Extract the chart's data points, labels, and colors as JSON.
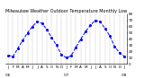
{
  "title": "Milwaukee Weather Outdoor Temperature Monthly Low",
  "months": [
    "Jan",
    "Feb",
    "Mar",
    "Apr",
    "May",
    "Jun",
    "Jul",
    "Aug",
    "Sep",
    "Oct",
    "Nov",
    "Dec",
    "Jan",
    "Feb",
    "Mar",
    "Apr",
    "May",
    "Jun",
    "Jul",
    "Aug",
    "Sep",
    "Oct",
    "Nov",
    "Dec",
    "Jan"
  ],
  "years": [
    "06",
    "06",
    "06",
    "06",
    "06",
    "06",
    "06",
    "06",
    "06",
    "06",
    "06",
    "06",
    "07",
    "07",
    "07",
    "07",
    "07",
    "07",
    "07",
    "07",
    "07",
    "07",
    "07",
    "07",
    "08"
  ],
  "values": [
    14,
    12,
    25,
    38,
    50,
    60,
    68,
    65,
    55,
    42,
    30,
    15,
    10,
    13,
    27,
    40,
    52,
    62,
    70,
    68,
    57,
    45,
    28,
    18,
    12
  ],
  "line_color": "#0000ff",
  "marker": "o",
  "marker_size": 1.2,
  "line_style": "--",
  "line_width": 0.7,
  "grid_color": "#aaaaaa",
  "bg_color": "#ffffff",
  "ylim": [
    0,
    80
  ],
  "yticks": [
    0,
    10,
    20,
    30,
    40,
    50,
    60,
    70,
    80
  ],
  "title_fontsize": 3.5,
  "tick_fontsize": 3.0
}
